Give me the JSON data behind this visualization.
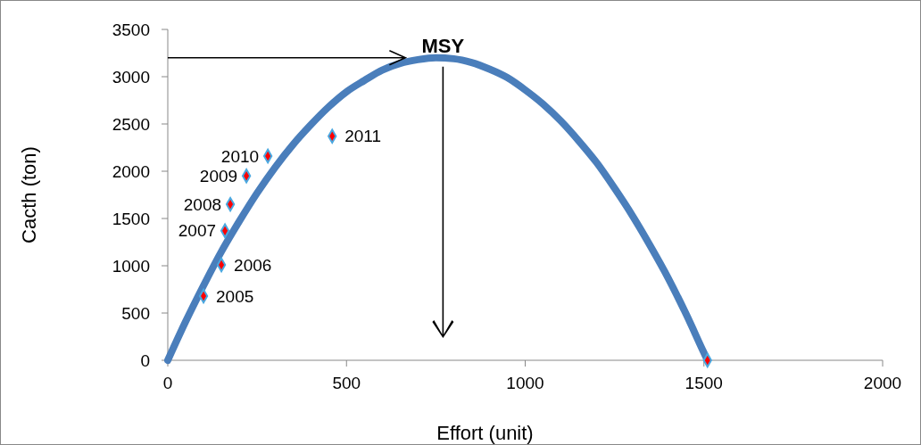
{
  "chart_data": {
    "type": "scatter",
    "xlabel": "Effort (unit)",
    "ylabel": "Cacth (ton)",
    "xlim": [
      0,
      2000
    ],
    "xticks": [
      0,
      500,
      1000,
      1500,
      2000
    ],
    "ylim": [
      0,
      3500
    ],
    "yticks": [
      0,
      500,
      1000,
      1500,
      2000,
      2500,
      3000,
      3500
    ],
    "grid": false,
    "marker": "diamond",
    "annotations": [
      {
        "text": "MSY",
        "x": 770,
        "y": 3200
      },
      {
        "text": "2005",
        "x": 100,
        "y": 680
      },
      {
        "text": "2006",
        "x": 150,
        "y": 1010
      },
      {
        "text": "2007",
        "x": 160,
        "y": 1370
      },
      {
        "text": "2008",
        "x": 175,
        "y": 1650
      },
      {
        "text": "2009",
        "x": 220,
        "y": 1950
      },
      {
        "text": "2010",
        "x": 280,
        "y": 2160
      },
      {
        "text": "2011",
        "x": 460,
        "y": 2370
      }
    ],
    "series": [
      {
        "type": "line",
        "color": "#4a7ebb",
        "line_style": "solid",
        "marker": "none",
        "x": [
          0,
          50,
          100,
          150,
          200,
          250,
          300,
          350,
          400,
          450,
          500,
          550,
          600,
          650,
          700,
          750,
          800,
          850,
          900,
          950,
          1000,
          1050,
          1100,
          1150,
          1200,
          1250,
          1300,
          1350,
          1400,
          1450,
          1500,
          1510
        ],
        "values": [
          0,
          410,
          790,
          1150,
          1470,
          1770,
          2040,
          2280,
          2490,
          2680,
          2840,
          2960,
          3070,
          3140,
          3180,
          3200,
          3190,
          3150,
          3080,
          2990,
          2860,
          2710,
          2530,
          2320,
          2090,
          1820,
          1530,
          1210,
          870,
          490,
          80,
          0
        ]
      },
      {
        "type": "scatter",
        "color": "#ff0000",
        "x": [
          100,
          150,
          160,
          175,
          220,
          280,
          460,
          1510
        ],
        "values": [
          680,
          1010,
          1370,
          1650,
          1950,
          2160,
          2370,
          0
        ]
      }
    ]
  }
}
